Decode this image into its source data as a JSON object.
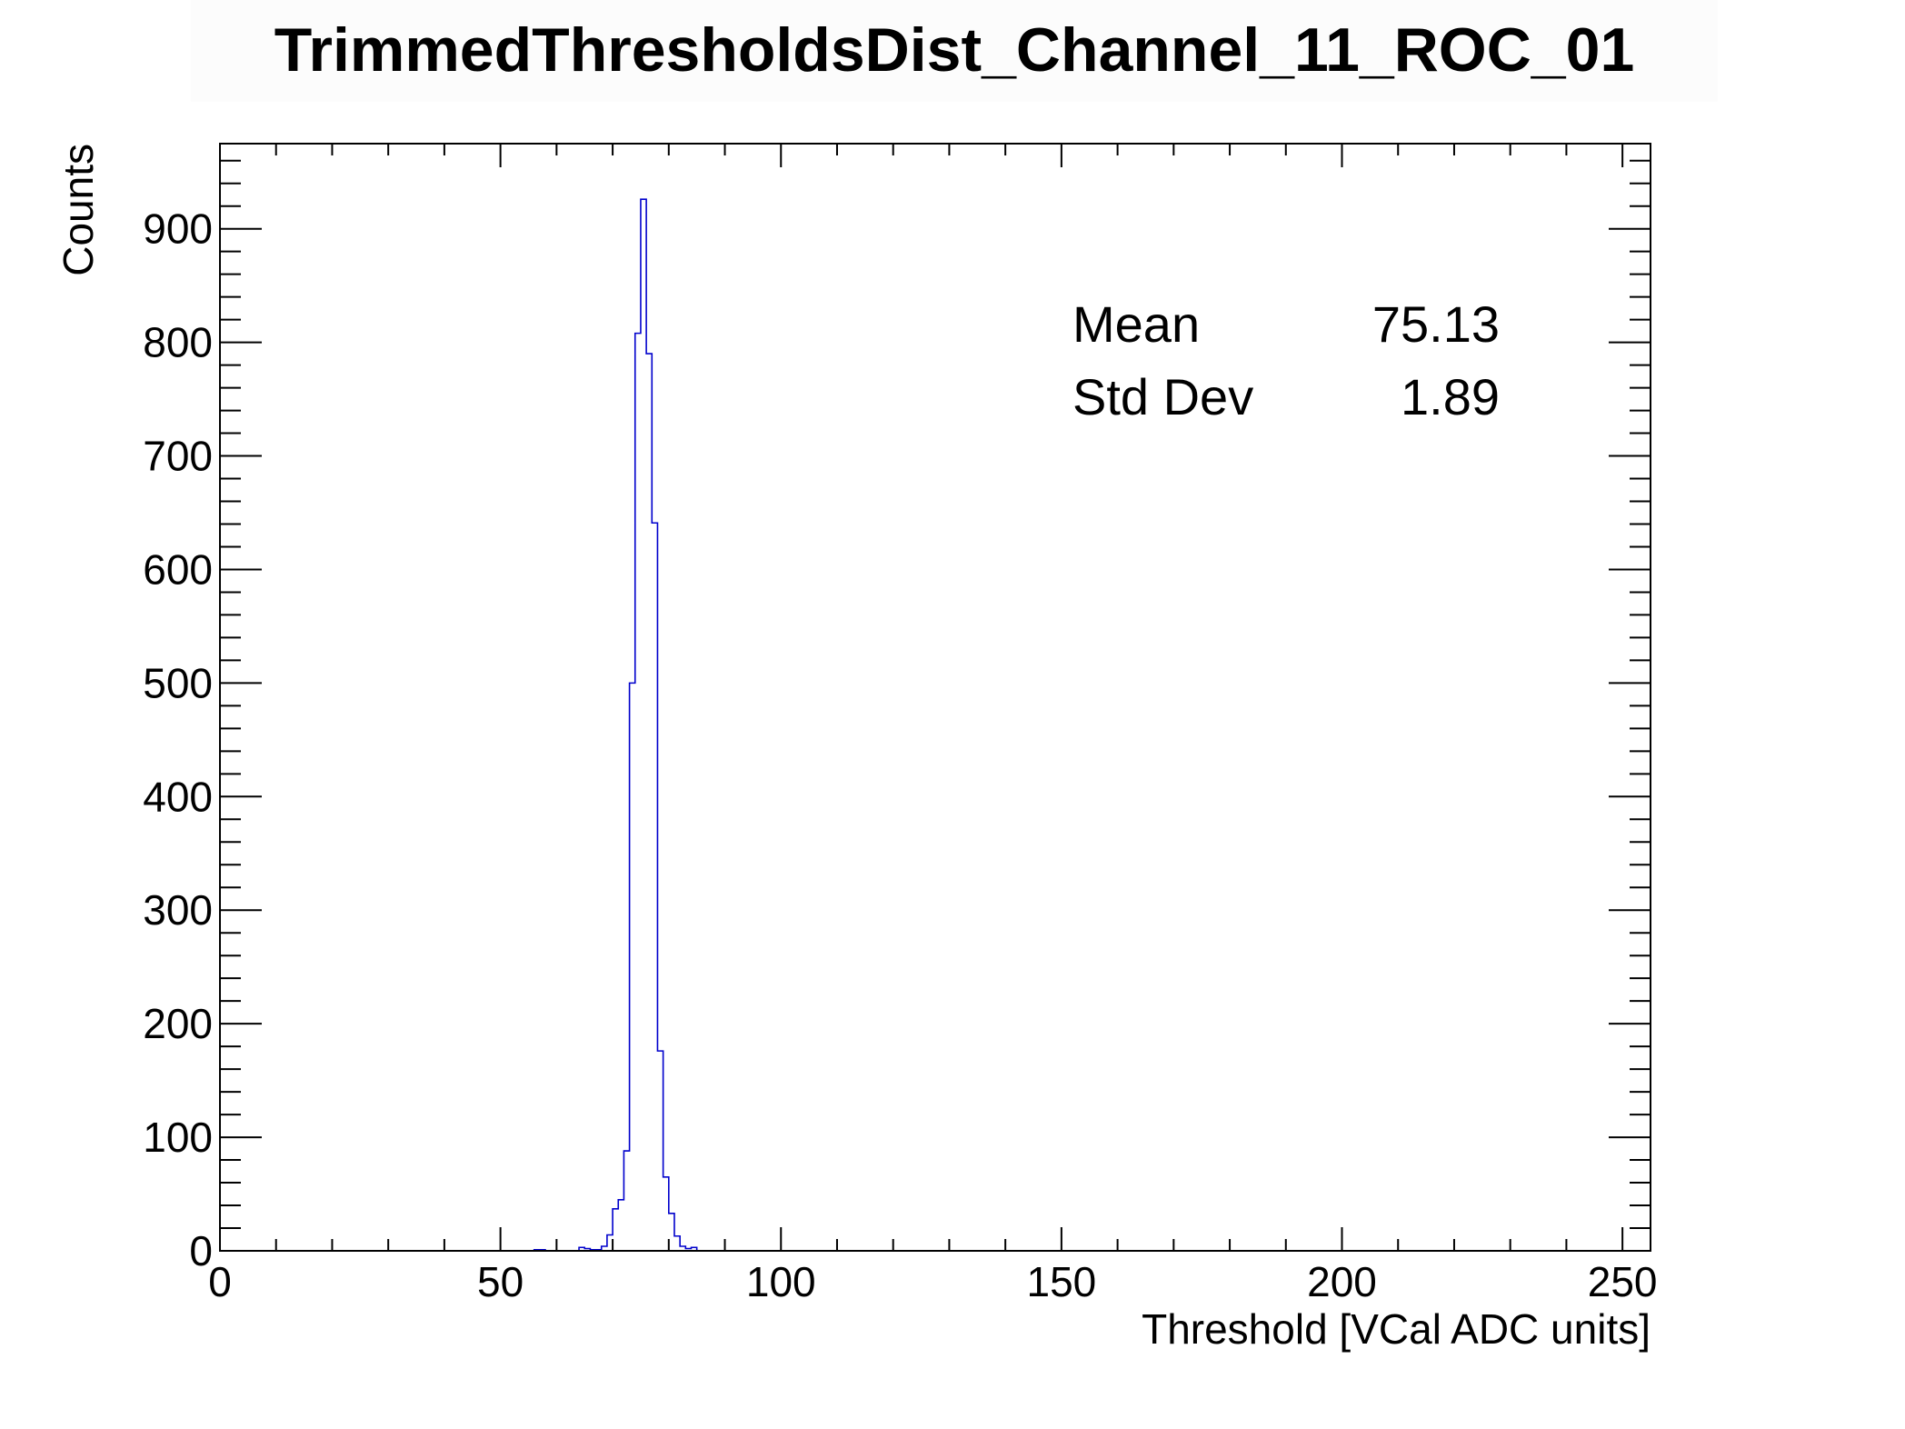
{
  "chart_data": {
    "type": "bar",
    "title": "TrimmedThresholdsDist_Channel_11_ROC_01",
    "xlabel": "Threshold [VCal ADC units]",
    "ylabel": "Counts",
    "xlim": [
      0,
      255
    ],
    "ylim": [
      0,
      975
    ],
    "bin_width": 1,
    "xticks": [
      0,
      50,
      100,
      150,
      200,
      250
    ],
    "yticks": [
      0,
      100,
      200,
      300,
      400,
      500,
      600,
      700,
      800,
      900
    ],
    "grid": false,
    "legend": "none",
    "line_color": "#0000cc",
    "x": [
      56,
      57,
      64,
      65,
      66,
      67,
      68,
      69,
      70,
      71,
      72,
      73,
      74,
      75,
      76,
      77,
      78,
      79,
      80,
      81,
      82,
      83,
      84
    ],
    "values": [
      1,
      1,
      3,
      2,
      1,
      1,
      4,
      14,
      37,
      45,
      88,
      500,
      808,
      926,
      790,
      641,
      176,
      65,
      33,
      13,
      4,
      2,
      3
    ],
    "stats": [
      {
        "label": "Mean",
        "value": "75.13"
      },
      {
        "label": "Std Dev",
        "value": "1.89"
      }
    ]
  }
}
